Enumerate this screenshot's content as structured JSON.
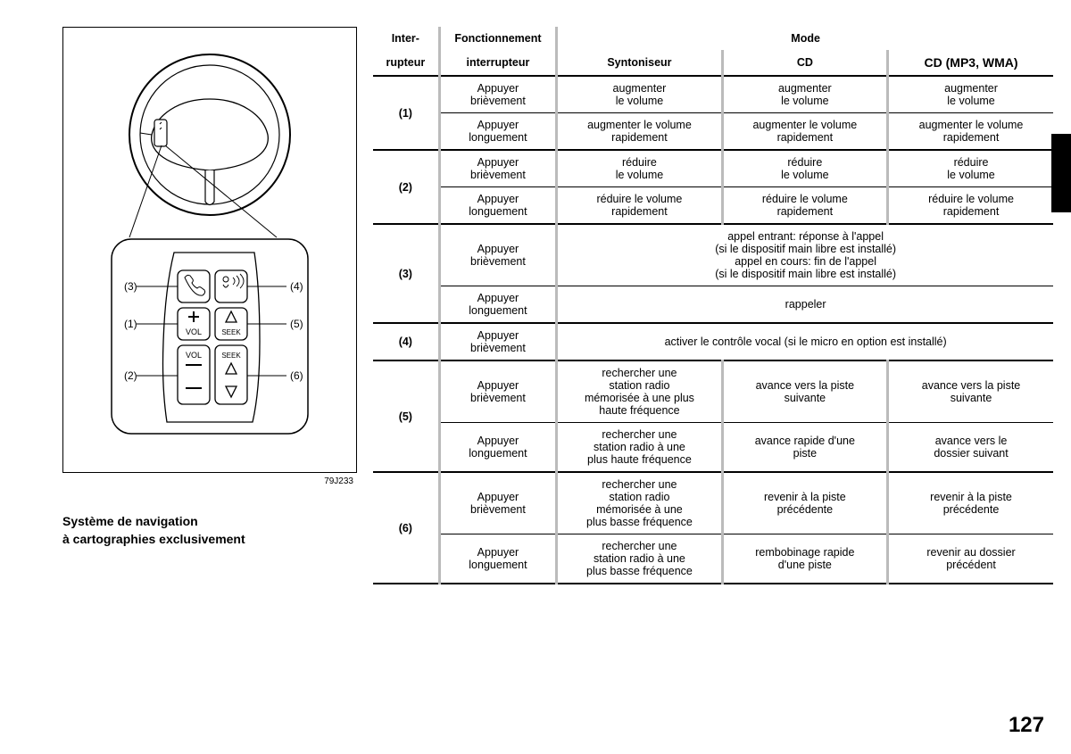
{
  "figure": {
    "code": "79J233",
    "panel_labels": {
      "l1": "(3)",
      "l2": "(1)",
      "l3": "(2)",
      "r1": "(4)",
      "r2": "(5)",
      "r3": "(6)"
    },
    "button_text": {
      "vol": "VOL",
      "seek": "SEEK"
    }
  },
  "caption": {
    "line1": "Système de navigation",
    "line2": "à cartographies exclusivement"
  },
  "headers": {
    "inter": "Inter-",
    "rupteur": "rupteur",
    "fonctionnement": "Fonctionnement",
    "interrupteur": "interrupteur",
    "mode": "Mode",
    "syntoniseur": "Syntoniseur",
    "cd": "CD",
    "cdmp3": "CD (MP3, WMA)"
  },
  "rows": {
    "r1": {
      "label": "(1)",
      "f1": "Appuyer\nbrièvement",
      "c1": "augmenter\nle volume",
      "c2": "augmenter\nle volume",
      "c3": "augmenter\nle volume",
      "f2": "Appuyer\nlonguement",
      "d1": "augmenter le volume\nrapidement",
      "d2": "augmenter le volume\nrapidement",
      "d3": "augmenter le volume\nrapidement"
    },
    "r2": {
      "label": "(2)",
      "f1": "Appuyer\nbrièvement",
      "c1": "réduire\nle volume",
      "c2": "réduire\nle volume",
      "c3": "réduire\nle volume",
      "f2": "Appuyer\nlonguement",
      "d1": "réduire le volume\nrapidement",
      "d2": "réduire le volume\nrapidement",
      "d3": "réduire le volume\nrapidement"
    },
    "r3": {
      "label": "(3)",
      "f1": "Appuyer\nbrièvement",
      "m1": "appel entrant: réponse à l'appel\n(si le dispositif main  libre est installé)\nappel en cours: fin de l'appel\n(si le dispositif main  libre est installé)",
      "f2": "Appuyer\nlonguement",
      "m2": "rappeler"
    },
    "r4": {
      "label": "(4)",
      "f1": "Appuyer\nbrièvement",
      "m1": "activer le contrôle vocal (si le micro en option est installé)"
    },
    "r5": {
      "label": "(5)",
      "f1": "Appuyer\nbrièvement",
      "c1": "rechercher une\nstation radio\nmémorisée à une plus\nhaute fréquence",
      "c2": "avance vers la piste\nsuivante",
      "c3": "avance vers la piste\nsuivante",
      "f2": "Appuyer\nlonguement",
      "d1": "rechercher une\nstation radio à une\nplus haute fréquence",
      "d2": "avance rapide d'une\npiste",
      "d3": "avance vers le\ndossier suivant"
    },
    "r6": {
      "label": "(6)",
      "f1": "Appuyer\nbrièvement",
      "c1": "rechercher une\nstation radio\nmémorisée à une\nplus basse fréquence",
      "c2": "revenir à la piste\nprécédente",
      "c3": "revenir à la piste\nprécédente",
      "f2": "Appuyer\nlonguement",
      "d1": "rechercher une\nstation radio à une\nplus basse fréquence",
      "d2": "rembobinage rapide\nd'une piste",
      "d3": "revenir au dossier\nprécédent"
    }
  },
  "page_number": "127",
  "colors": {
    "rule_grey": "#bbbbbb"
  }
}
